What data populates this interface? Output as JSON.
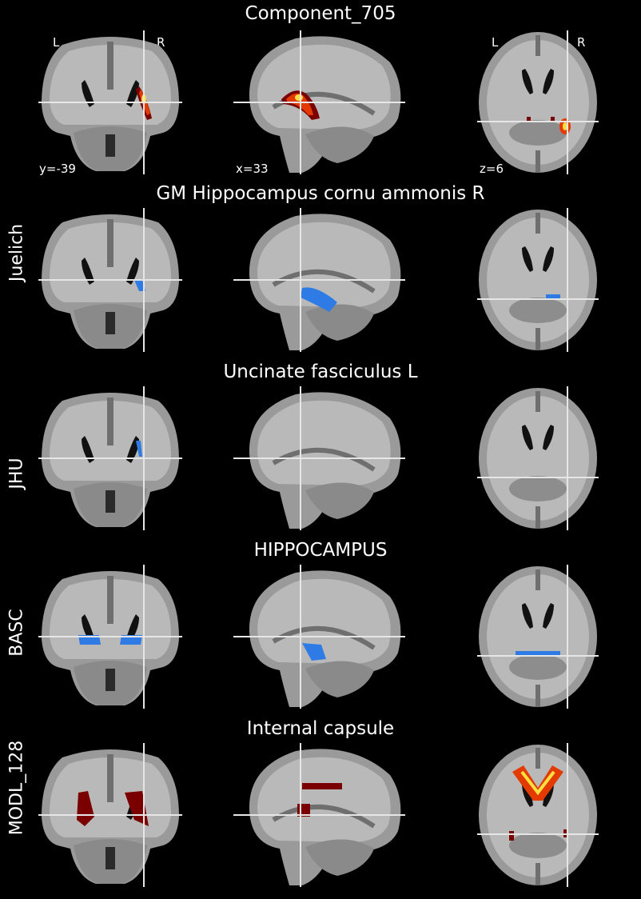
{
  "figure": {
    "panels": [
      {
        "title": "Component_705",
        "row_label": "",
        "overlay": "hot",
        "orient": [
          "L",
          "R"
        ],
        "coords": [
          "y=-39",
          "x=33",
          "z=6"
        ]
      },
      {
        "title": "GM Hippocampus cornu ammonis R",
        "row_label": "Juelich",
        "overlay": "blue"
      },
      {
        "title": "Uncinate fasciculus L",
        "row_label": "JHU",
        "overlay": "blue"
      },
      {
        "title": "HIPPOCAMPUS",
        "row_label": "BASC",
        "overlay": "blue"
      },
      {
        "title": "Internal capsule",
        "row_label": "MODL_128",
        "overlay": "hot"
      }
    ]
  },
  "colors": {
    "background": "#000000",
    "brain_light": "#b9b9b9",
    "brain_mid": "#9a9a9a",
    "brain_dark": "#6f6f6f",
    "crosshair": "#e6e6e6",
    "overlay_blue": "#2f7be6",
    "overlay_hot_outer": "#7a0000",
    "overlay_hot_mid": "#e23a00",
    "overlay_hot_inner": "#ffe040"
  },
  "icons": [
    "coronal-slice-image",
    "sagittal-slice-image",
    "axial-slice-image"
  ]
}
